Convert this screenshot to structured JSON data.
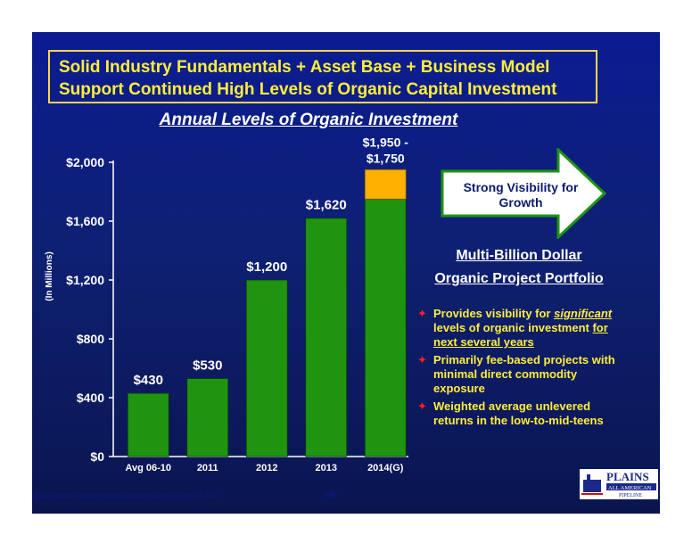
{
  "header": {
    "title_line1": "Solid Industry Fundamentals + Asset Base + Business Model",
    "title_line2": "Support Continued High Levels of Organic Capital Investment"
  },
  "arrow": {
    "line1": "Strong Visibility for",
    "line2": "Growth"
  },
  "portfolio": {
    "line1": "Multi-Billion Dollar",
    "line2": "Organic Project Portfolio"
  },
  "bullets": [
    {
      "before": "Provides visibility for ",
      "emph": "significant",
      "middle": " levels of organic investment ",
      "ul1": "for",
      "ul2": "next several years"
    },
    {
      "text": "Primarily fee-based projects with minimal direct commodity exposure"
    },
    {
      "text": "Weighted average unlevered returns in the low-to-mid-teens"
    }
  ],
  "footnote": "2014(G) amount is based on guidance furnished via form 8-K on May 7, 2014.",
  "page_number": "-16-",
  "logo": {
    "line1": "PLAINS",
    "line2": "ALL AMERICAN",
    "line3": "PIPELINE"
  },
  "colors": {
    "bar": "#1f9410",
    "range": "#ffb000",
    "title_yellow": "#ffee3a",
    "bullet_star": "#ff2020"
  },
  "icons": {
    "bullet": "four-point-star-icon",
    "arrow": "right-arrow-icon"
  },
  "chart_data": {
    "type": "bar",
    "title": "Annual Levels of Organic Investment",
    "ylabel": "(In Millions)",
    "ylim": [
      0,
      2000
    ],
    "yticks": [
      0,
      400,
      800,
      1200,
      1600,
      2000
    ],
    "ytick_labels": [
      "$0",
      "$400",
      "$800",
      "$1,200",
      "$1,600",
      "$2,000"
    ],
    "categories": [
      "Avg 06-10",
      "2011",
      "2012",
      "2013",
      "2014(G)"
    ],
    "values": [
      430,
      530,
      1200,
      1620,
      1750
    ],
    "range_top": [
      null,
      null,
      null,
      null,
      1950
    ],
    "data_labels": [
      "$430",
      "$530",
      "$1,200",
      "$1,620",
      "$1,950 - $1,750"
    ]
  }
}
